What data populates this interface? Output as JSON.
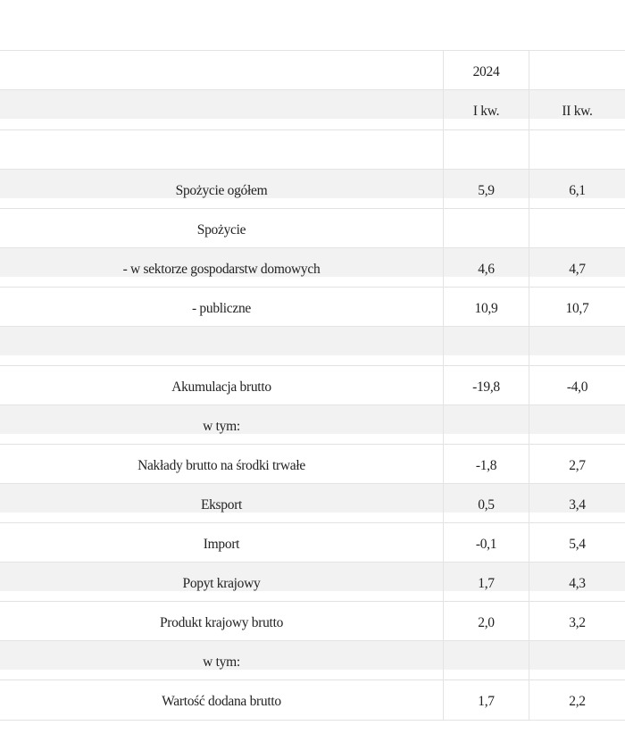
{
  "header": {
    "year": "2024",
    "quarters": [
      "I kw.",
      "II kw."
    ]
  },
  "rows": [
    {
      "label": "",
      "q1": "",
      "q2": ""
    },
    {
      "label": "Spożycie ogółem",
      "q1": "5,9",
      "q2": "6,1"
    },
    {
      "label": "Spożycie",
      "q1": "",
      "q2": ""
    },
    {
      "label": "- w sektorze gospodarstw domowych",
      "q1": "4,6",
      "q2": "4,7"
    },
    {
      "label": "- publiczne",
      "q1": "10,9",
      "q2": "10,7"
    },
    {
      "label": "",
      "q1": "",
      "q2": ""
    },
    {
      "label": "Akumulacja brutto",
      "q1": "-19,8",
      "q2": "-4,0"
    },
    {
      "label": "w tym:",
      "q1": "",
      "q2": ""
    },
    {
      "label": "Nakłady brutto na środki trwałe",
      "q1": "-1,8",
      "q2": "2,7"
    },
    {
      "label": "Eksport",
      "q1": "0,5",
      "q2": "3,4"
    },
    {
      "label": "Import",
      "q1": "-0,1",
      "q2": "5,4"
    },
    {
      "label": "Popyt krajowy",
      "q1": "1,7",
      "q2": "4,3"
    },
    {
      "label": "Produkt krajowy brutto",
      "q1": "2,0",
      "q2": "3,2"
    },
    {
      "label": "w tym:",
      "q1": "",
      "q2": ""
    },
    {
      "label": "Wartość dodana brutto",
      "q1": "1,7",
      "q2": "2,2"
    }
  ]
}
